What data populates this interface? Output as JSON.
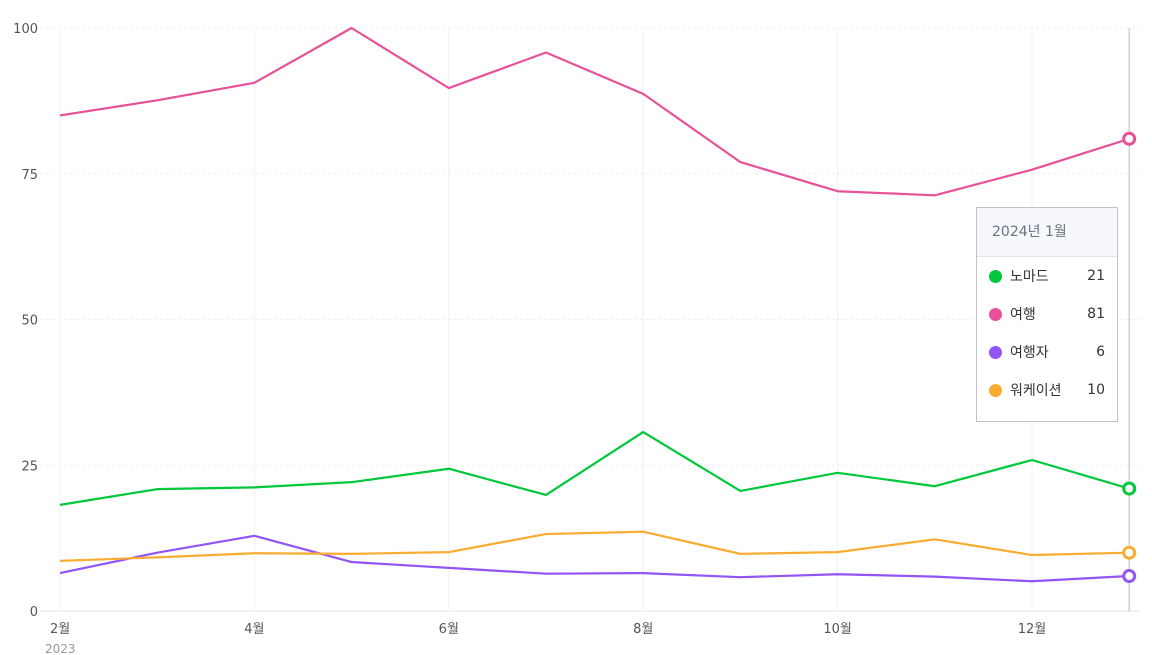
{
  "chart_data": {
    "type": "line",
    "x": [
      "2023-02",
      "2023-03",
      "2023-04",
      "2023-05",
      "2023-06",
      "2023-07",
      "2023-08",
      "2023-09",
      "2023-10",
      "2023-11",
      "2023-12",
      "2024-01"
    ],
    "x_tick_labels": [
      "2월",
      "",
      "4월",
      "",
      "6월",
      "",
      "8월",
      "",
      "10월",
      "",
      "12월",
      ""
    ],
    "x_year_label": "2023",
    "y_ticks": [
      "0",
      "25",
      "50",
      "75",
      "100"
    ],
    "ylim": [
      0,
      100
    ],
    "grid": true,
    "series": [
      {
        "name": "노마드",
        "color": "#00c73c",
        "values": [
          18.2,
          20.9,
          21.2,
          22.1,
          24.4,
          19.9,
          30.7,
          20.6,
          23.7,
          21.4,
          25.9,
          21
        ]
      },
      {
        "name": "여행",
        "color": "#e8519a",
        "values": [
          85,
          87.6,
          90.6,
          100,
          89.7,
          95.8,
          88.7,
          77,
          72,
          71.3,
          75.7,
          81
        ]
      },
      {
        "name": "여행자",
        "color": "#9254f5",
        "values": [
          6.5,
          10,
          12.9,
          8.4,
          7.4,
          6.4,
          6.5,
          5.8,
          6.3,
          5.9,
          5.1,
          6
        ]
      },
      {
        "name": "워케이션",
        "color": "#f9ac2f",
        "values": [
          8.6,
          9.2,
          9.9,
          9.8,
          10.1,
          13.2,
          13.6,
          9.8,
          10.1,
          12.3,
          9.6,
          10
        ]
      }
    ],
    "tooltip": {
      "title": "2024년 1월",
      "rows": [
        {
          "name": "노마드",
          "value": "21"
        },
        {
          "name": "여행",
          "value": "81"
        },
        {
          "name": "여행자",
          "value": "6"
        },
        {
          "name": "워케이션",
          "value": "10"
        }
      ]
    }
  }
}
